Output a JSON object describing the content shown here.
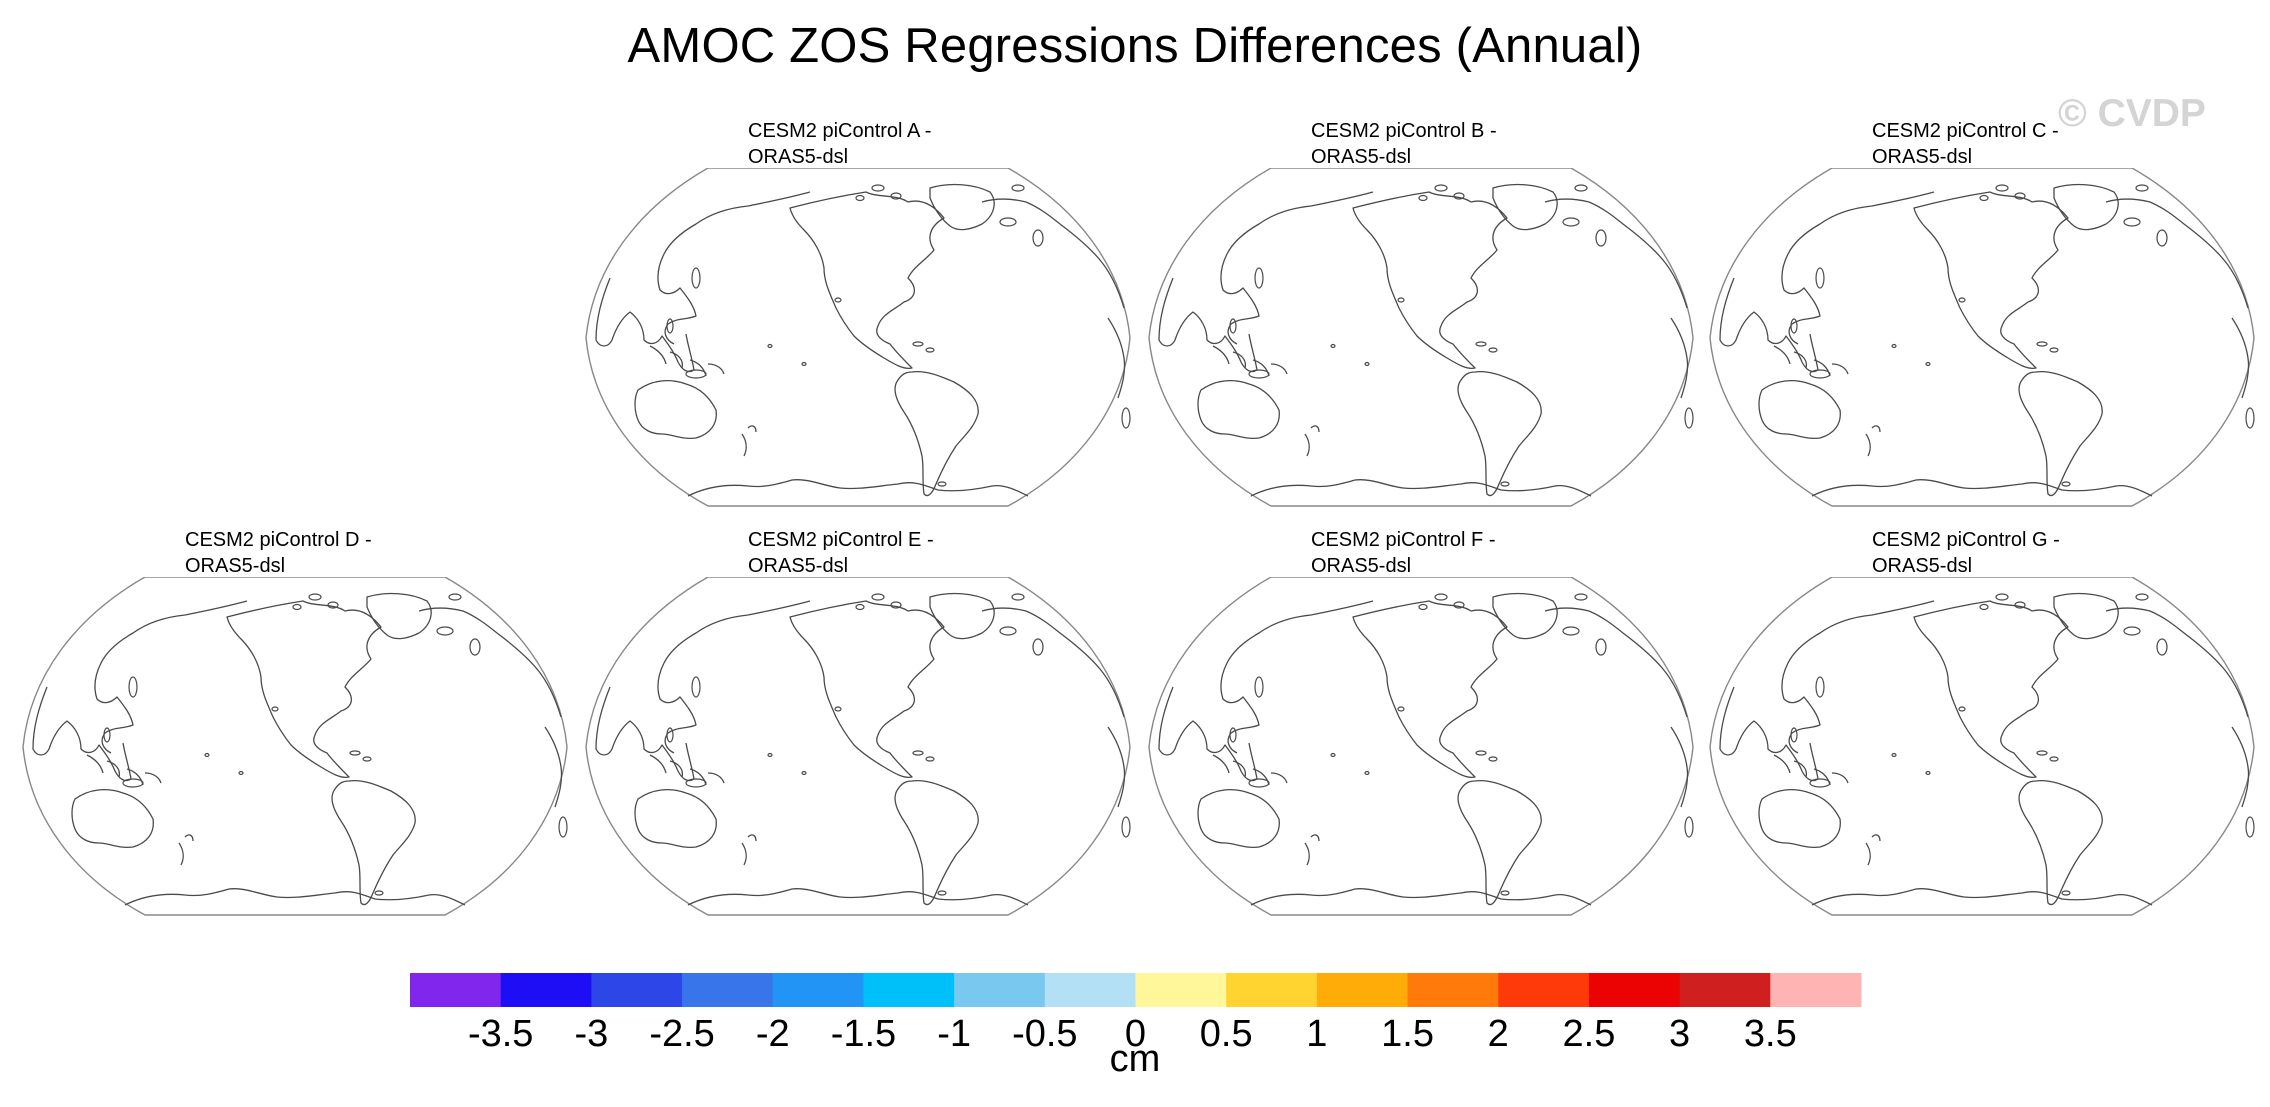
{
  "title": "AMOC ZOS Regressions Differences (Annual)",
  "watermark": "© CVDP",
  "panels": [
    {
      "line1": "CESM2 piControl A -",
      "line2": "ORAS5-dsl"
    },
    {
      "line1": "CESM2 piControl B -",
      "line2": "ORAS5-dsl"
    },
    {
      "line1": "CESM2 piControl C -",
      "line2": "ORAS5-dsl"
    },
    {
      "line1": "CESM2 piControl D -",
      "line2": "ORAS5-dsl"
    },
    {
      "line1": "CESM2 piControl E -",
      "line2": "ORAS5-dsl"
    },
    {
      "line1": "CESM2 piControl F -",
      "line2": "ORAS5-dsl"
    },
    {
      "line1": "CESM2 piControl G -",
      "line2": "ORAS5-dsl"
    }
  ],
  "colorbar": {
    "unit": "cm",
    "labels": [
      "-3.5",
      "-3",
      "-2.5",
      "-2",
      "-1.5",
      "-1",
      "-0.5",
      "0",
      "0.5",
      "1",
      "1.5",
      "2",
      "2.5",
      "3",
      "3.5"
    ],
    "colors": [
      "#8126ec",
      "#1e0ef6",
      "#2c46e7",
      "#3875ea",
      "#2294f5",
      "#00c0fa",
      "#78c8f0",
      "#b4e0f5",
      "#fff79a",
      "#ffd330",
      "#ffab08",
      "#ff7a0a",
      "#ff3a0a",
      "#eb0303",
      "#d01f1f",
      "#ffb4b4"
    ]
  }
}
